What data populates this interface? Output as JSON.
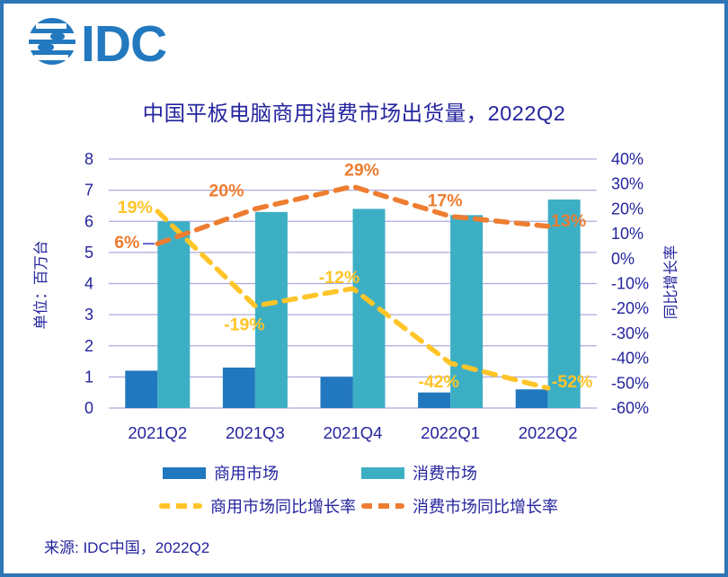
{
  "app": {
    "frame_border_color": "#2E75B6",
    "background_color": "#FFFFFF",
    "text_color": "#24249E"
  },
  "logo": {
    "text": "IDC",
    "color": "#2379BF",
    "icon": "globe-stripes-icon"
  },
  "title": {
    "text": "中国平板电脑商用消费市场出货量，2022Q2"
  },
  "source": {
    "text": "来源: IDC中国，2022Q2"
  },
  "chart_data": {
    "type": "bar",
    "subtype": "bar-line-combo",
    "title": "中国平板电脑商用消费市场出货量，2022Q2",
    "categories": [
      "2021Q2",
      "2021Q3",
      "2021Q4",
      "2022Q1",
      "2022Q2"
    ],
    "bar_series": [
      {
        "name": "商用市场",
        "color": "#2278BE",
        "axis": "left",
        "values": [
          1.2,
          1.3,
          1.0,
          0.5,
          0.6
        ]
      },
      {
        "name": "消费市场",
        "color": "#3DAFC5",
        "axis": "left",
        "values": [
          6.0,
          6.3,
          6.4,
          6.2,
          6.7
        ]
      }
    ],
    "line_series": [
      {
        "name": "商用市场同比增长率",
        "color": "#FFC428",
        "style": "dashed",
        "axis": "right",
        "values": [
          19,
          -19,
          -12,
          -42,
          -52
        ],
        "labels": [
          "19%",
          "-19%",
          "-12%",
          "-42%",
          "-52%"
        ]
      },
      {
        "name": "消费市场同比增长率",
        "color": "#EE7D31",
        "style": "dashed",
        "axis": "right",
        "values": [
          6,
          20,
          29,
          17,
          13
        ],
        "labels": [
          "6%",
          "20%",
          "29%",
          "17%",
          "13%"
        ]
      }
    ],
    "left_axis": {
      "title": "单位：百万台",
      "min": 0,
      "max": 8,
      "step": 1,
      "ticks": [
        "0",
        "1",
        "2",
        "3",
        "4",
        "5",
        "6",
        "7",
        "8"
      ]
    },
    "right_axis": {
      "title": "同比增长率",
      "min": -60,
      "max": 40,
      "step": 10,
      "ticks": [
        "40%",
        "30%",
        "20%",
        "10%",
        "0%",
        "-10%",
        "-20%",
        "-30%",
        "-40%",
        "-50%",
        "-60%"
      ]
    },
    "grid": true,
    "gridline_color": "#ABABDE",
    "legend_position": "bottom"
  }
}
